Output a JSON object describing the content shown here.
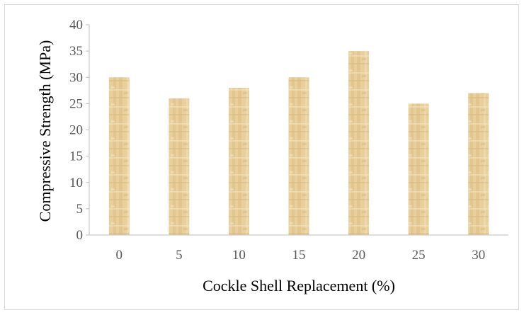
{
  "chart_data": {
    "type": "bar",
    "title": "",
    "xlabel": "Cockle Shell Replacement (%)",
    "ylabel": "Compressive Strength (MPa)",
    "categories": [
      "0",
      "5",
      "10",
      "15",
      "20",
      "25",
      "30"
    ],
    "values": [
      30,
      26,
      28,
      30,
      35,
      25,
      27
    ],
    "ylim": [
      0,
      40
    ],
    "yticks": [
      "0",
      "5",
      "10",
      "15",
      "20",
      "25",
      "30",
      "35",
      "40"
    ],
    "grid": false,
    "legend": "none",
    "bar_fill": "papyrus texture",
    "colors": {
      "bar": "#E8CF9C",
      "bar_dark": "#D6B77A",
      "axis": "#BFBFBF",
      "tick_text": "#595959",
      "border": "#D9D9D9"
    }
  }
}
